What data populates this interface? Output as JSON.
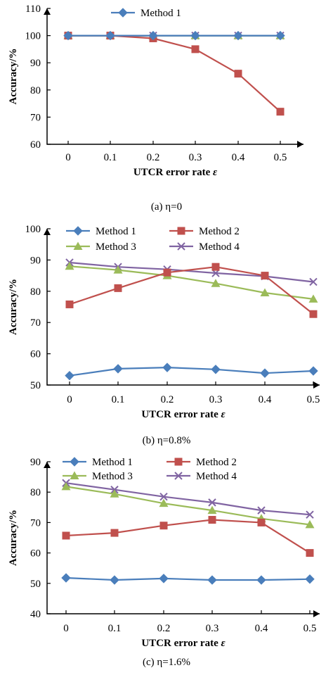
{
  "chart_data": [
    {
      "type": "line",
      "caption": "(a) η=0",
      "xlabel": "UTCR error rate ε",
      "ylabel": "Accuracy/%",
      "x": [
        0,
        0.1,
        0.2,
        0.3,
        0.4,
        0.5
      ],
      "x_tick_labels": [
        "0",
        "0.1",
        "0.2",
        "0.3",
        "0.4",
        "0.5"
      ],
      "ylim": [
        60,
        110
      ],
      "y_ticks": [
        60,
        70,
        80,
        90,
        100,
        110
      ],
      "legend_placement": "top-center",
      "series": [
        {
          "name": "Method 1",
          "color": "#4a7ebb",
          "marker": "diamond",
          "values": [
            100,
            100,
            100,
            100,
            100,
            100
          ],
          "show_in_legend": true
        },
        {
          "name": "",
          "color": "#c0504d",
          "marker": "square",
          "values": [
            100,
            100,
            99,
            95,
            86,
            72
          ],
          "show_in_legend": false
        },
        {
          "name": "",
          "color": "#9bbb59",
          "marker": "triangle",
          "values": [
            100,
            100,
            100,
            100,
            100,
            100
          ],
          "show_in_legend": false
        },
        {
          "name": "",
          "color": "#8064a2",
          "marker": "x",
          "values": [
            100,
            100,
            100,
            100,
            100,
            100
          ],
          "show_in_legend": false
        }
      ]
    },
    {
      "type": "line",
      "caption": "(b) η=0.8%",
      "xlabel": "UTCR error rate ε",
      "ylabel": "Accuracy/%",
      "x": [
        0,
        0.1,
        0.2,
        0.3,
        0.4,
        0.5
      ],
      "x_tick_labels": [
        "0",
        "0.1",
        "0.2",
        "0.3",
        "0.4",
        "0.5"
      ],
      "ylim": [
        50,
        100
      ],
      "y_ticks": [
        50,
        60,
        70,
        80,
        90,
        100
      ],
      "legend_placement": "top",
      "series": [
        {
          "name": "Method 1",
          "color": "#4a7ebb",
          "marker": "diamond",
          "values": [
            53,
            55.2,
            55.6,
            55,
            53.8,
            54.5
          ],
          "show_in_legend": true
        },
        {
          "name": "Method 2",
          "color": "#c0504d",
          "marker": "square",
          "values": [
            75.8,
            81,
            86,
            87.8,
            85,
            72.7
          ],
          "show_in_legend": true
        },
        {
          "name": "Method 3",
          "color": "#9bbb59",
          "marker": "triangle",
          "values": [
            88,
            86.8,
            85,
            82.5,
            79.5,
            77.5
          ],
          "show_in_legend": true
        },
        {
          "name": "Method 4",
          "color": "#8064a2",
          "marker": "x",
          "values": [
            89.2,
            87.8,
            87,
            85.8,
            84.8,
            83
          ],
          "show_in_legend": true
        }
      ]
    },
    {
      "type": "line",
      "caption": "(c) η=1.6%",
      "xlabel": "UTCR error rate ε",
      "ylabel": "Accuracy/%",
      "x": [
        0,
        0.1,
        0.2,
        0.3,
        0.4,
        0.5
      ],
      "x_tick_labels": [
        "0",
        "0.1",
        "0.2",
        "0.3",
        "0.4",
        "0.5"
      ],
      "ylim": [
        40,
        90
      ],
      "y_ticks": [
        40,
        50,
        60,
        70,
        80,
        90
      ],
      "legend_placement": "top",
      "series": [
        {
          "name": "Method 1",
          "color": "#4a7ebb",
          "marker": "diamond",
          "values": [
            51.8,
            51.1,
            51.6,
            51.1,
            51.1,
            51.4
          ],
          "show_in_legend": true
        },
        {
          "name": "Method 2",
          "color": "#c0504d",
          "marker": "square",
          "values": [
            65.7,
            66.6,
            69,
            70.9,
            70,
            60
          ],
          "show_in_legend": true
        },
        {
          "name": "Method 3",
          "color": "#9bbb59",
          "marker": "triangle",
          "values": [
            81.8,
            79.4,
            76.3,
            74,
            71.3,
            69.3
          ],
          "show_in_legend": true
        },
        {
          "name": "Method 4",
          "color": "#8064a2",
          "marker": "x",
          "values": [
            83,
            80.8,
            78.5,
            76.6,
            74,
            72.6
          ],
          "show_in_legend": true
        }
      ]
    }
  ]
}
